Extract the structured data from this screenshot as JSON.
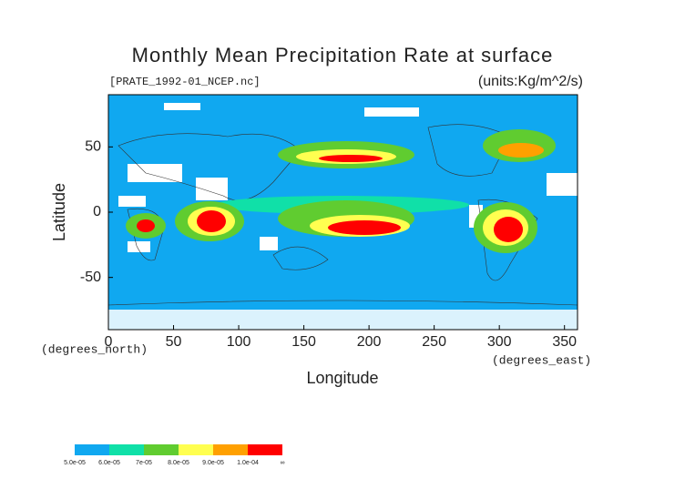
{
  "title": "Monthly Mean Precipitation Rate at surface",
  "source": "[PRATE_1992-01_NCEP.nc]",
  "units": "(units:Kg/m^2/s)",
  "x_axis": {
    "label": "Longitude",
    "unit": "(degrees_east)",
    "lim": [
      0,
      360
    ],
    "ticks": [
      0,
      50,
      100,
      150,
      200,
      250,
      300,
      350
    ]
  },
  "y_axis": {
    "label": "Latitude",
    "unit": "(degrees_north)",
    "lim": [
      -90,
      90
    ],
    "ticks": [
      -50,
      0,
      50
    ]
  },
  "colorbar": {
    "labels": [
      "5.0e-05",
      "6.0e-05",
      "7e-05",
      "8.0e-05",
      "9.0e-05",
      "1.0e-04",
      "∞"
    ],
    "colors": [
      "#10a8f0",
      "#10e0a8",
      "#60cc30",
      "#ffff50",
      "#ffa000",
      "#ff0000"
    ]
  }
}
